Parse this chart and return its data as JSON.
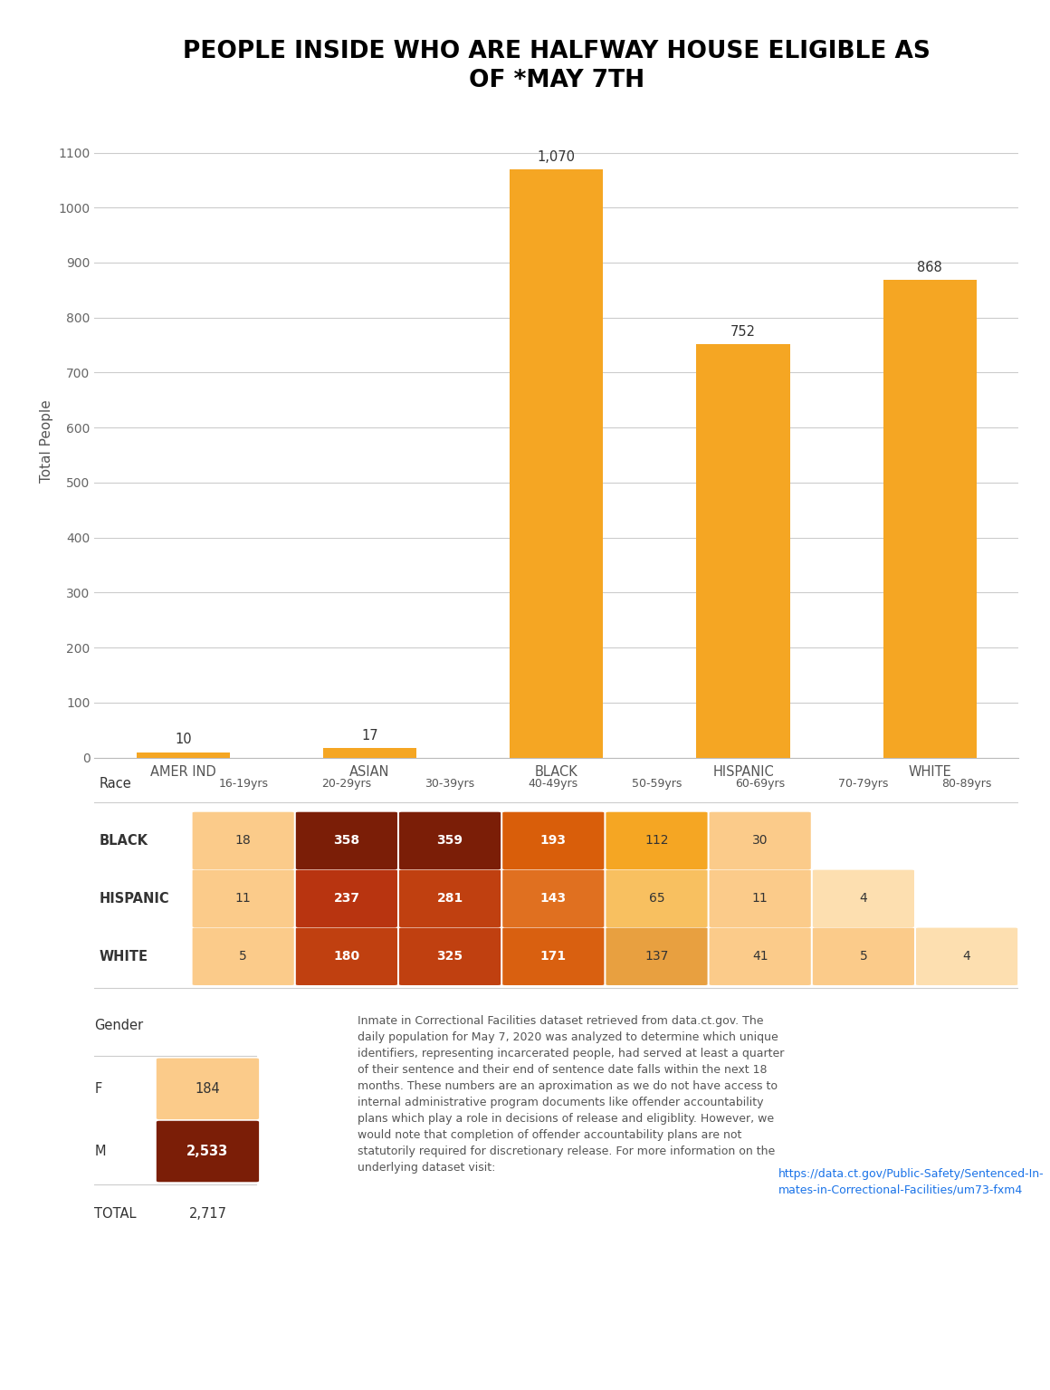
{
  "title": "PEOPLE INSIDE WHO ARE HALFWAY HOUSE ELIGIBLE AS\nOF *MAY 7TH",
  "bar_categories": [
    "AMER IND",
    "ASIAN",
    "BLACK",
    "HISPANIC",
    "WHITE"
  ],
  "bar_values": [
    10,
    17,
    1070,
    752,
    868
  ],
  "bar_color": "#F5A623",
  "bar_labels": [
    "10",
    "17",
    "1,070",
    "752",
    "868"
  ],
  "ylabel": "Total People",
  "ylim": [
    0,
    1150
  ],
  "yticks": [
    0,
    100,
    200,
    300,
    400,
    500,
    600,
    700,
    800,
    900,
    1000,
    1100
  ],
  "age_groups": [
    "16-19yrs",
    "20-29yrs",
    "30-39yrs",
    "40-49yrs",
    "50-59yrs",
    "60-69yrs",
    "70-79yrs",
    "80-89yrs"
  ],
  "race_rows": [
    "BLACK",
    "HISPANIC",
    "WHITE"
  ],
  "race_data": {
    "BLACK": [
      18,
      358,
      359,
      193,
      112,
      30,
      null,
      null
    ],
    "HISPANIC": [
      11,
      237,
      281,
      143,
      65,
      11,
      4,
      null
    ],
    "WHITE": [
      5,
      180,
      325,
      171,
      137,
      41,
      5,
      4
    ]
  },
  "heatmap_colors": {
    "BLACK": [
      "#FBCB8A",
      "#7B1E07",
      "#7B1E07",
      "#D95E0A",
      "#F5A623",
      "#FBCB8A",
      null,
      null
    ],
    "HISPANIC": [
      "#FBCB8A",
      "#B83410",
      "#C04010",
      "#E07020",
      "#F8C060",
      "#FBCB8A",
      "#FDDFB0",
      null
    ],
    "WHITE": [
      "#FBCB8A",
      "#C04010",
      "#C04010",
      "#D96010",
      "#E8A040",
      "#FBCB8A",
      "#FBCB8A",
      "#FDDFB0"
    ]
  },
  "gender_data": {
    "F": 184,
    "M": 2533,
    "TOTAL": 2717
  },
  "gender_colors": {
    "F": "#FBCB8A",
    "M": "#7B1E07"
  },
  "background_color": "#FFFFFF",
  "title_fontsize": 19,
  "axis_label_fontsize": 11,
  "tick_fontsize": 10
}
